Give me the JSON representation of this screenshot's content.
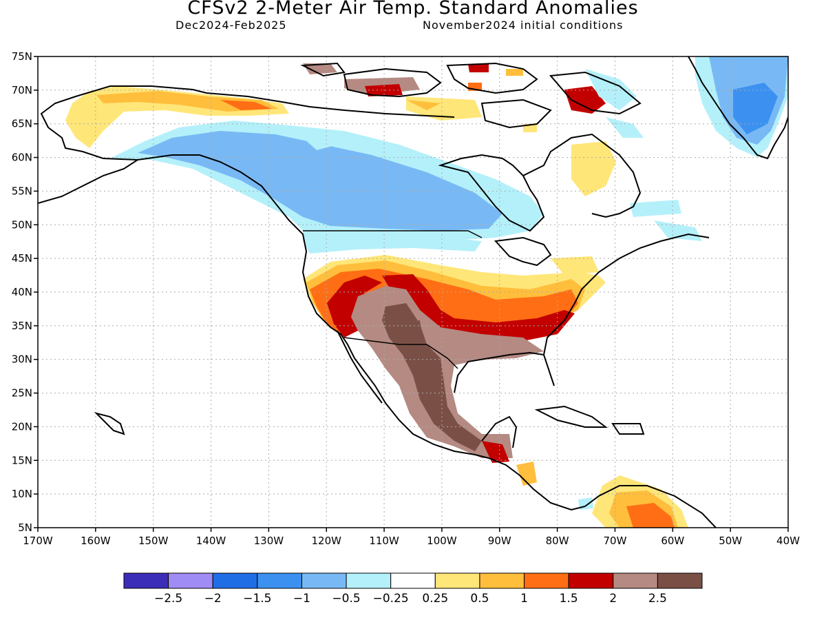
{
  "header": {
    "title": "CFSv2 2-Meter Air Temp. Standard Anomalies",
    "period": "Dec2024-Feb2025",
    "conditions": "November2024 initial conditions"
  },
  "axes": {
    "lat_labels": [
      "75N",
      "70N",
      "65N",
      "60N",
      "55N",
      "50N",
      "45N",
      "40N",
      "35N",
      "30N",
      "25N",
      "20N",
      "15N",
      "10N",
      "5N"
    ],
    "lon_labels": [
      "170W",
      "160W",
      "150W",
      "140W",
      "130W",
      "120W",
      "110W",
      "100W",
      "90W",
      "80W",
      "70W",
      "60W",
      "50W",
      "40W"
    ]
  },
  "colorbar": {
    "colors": [
      "#3c2db8",
      "#a08cf5",
      "#1f6ee6",
      "#3c91f0",
      "#78b9f5",
      "#b4f0fa",
      "#ffffff",
      "#ffe678",
      "#ffbe3c",
      "#ff6e14",
      "#c30000",
      "#b48a82",
      "#7a5046"
    ],
    "labels": [
      "-2.5",
      "-2",
      "-1.5",
      "-1",
      "-0.5",
      "-0.25",
      "0.25",
      "0.5",
      "1",
      "1.5",
      "2",
      "2.5"
    ]
  },
  "colors": {
    "land_outline": "#000000",
    "grid": "#aaaaaa"
  }
}
